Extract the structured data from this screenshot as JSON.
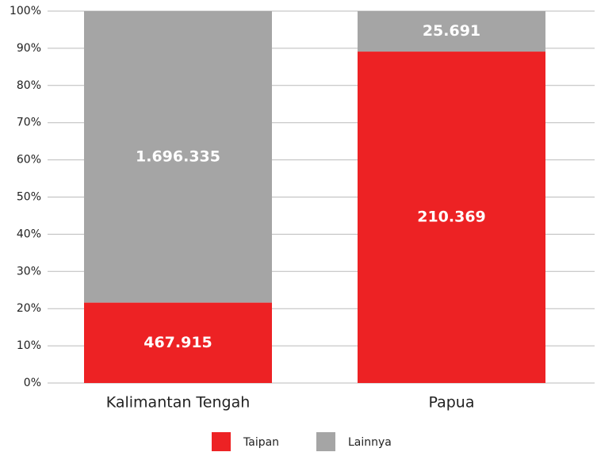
{
  "chart_data": {
    "type": "bar",
    "stack": "percent",
    "categories": [
      "Kalimantan Tengah",
      "Papua"
    ],
    "series": [
      {
        "name": "Taipan",
        "color": "#ed2224",
        "values": [
          467915,
          210369
        ],
        "value_labels": [
          "467.915",
          "210.369"
        ]
      },
      {
        "name": "Lainnya",
        "color": "#a5a5a5",
        "values": [
          1696335,
          25691
        ],
        "value_labels": [
          "1.696.335",
          "25.691"
        ]
      }
    ],
    "ylim": [
      0,
      100
    ],
    "yticks": [
      {
        "value": 0,
        "label": "0%"
      },
      {
        "value": 10,
        "label": "10%"
      },
      {
        "value": 20,
        "label": "20%"
      },
      {
        "value": 30,
        "label": "30%"
      },
      {
        "value": 40,
        "label": "40%"
      },
      {
        "value": 50,
        "label": "50%"
      },
      {
        "value": 60,
        "label": "60%"
      },
      {
        "value": 70,
        "label": "70%"
      },
      {
        "value": 80,
        "label": "80%"
      },
      {
        "value": 90,
        "label": "90%"
      },
      {
        "value": 100,
        "label": "100%"
      }
    ],
    "grid": true,
    "legend": "bottom"
  }
}
